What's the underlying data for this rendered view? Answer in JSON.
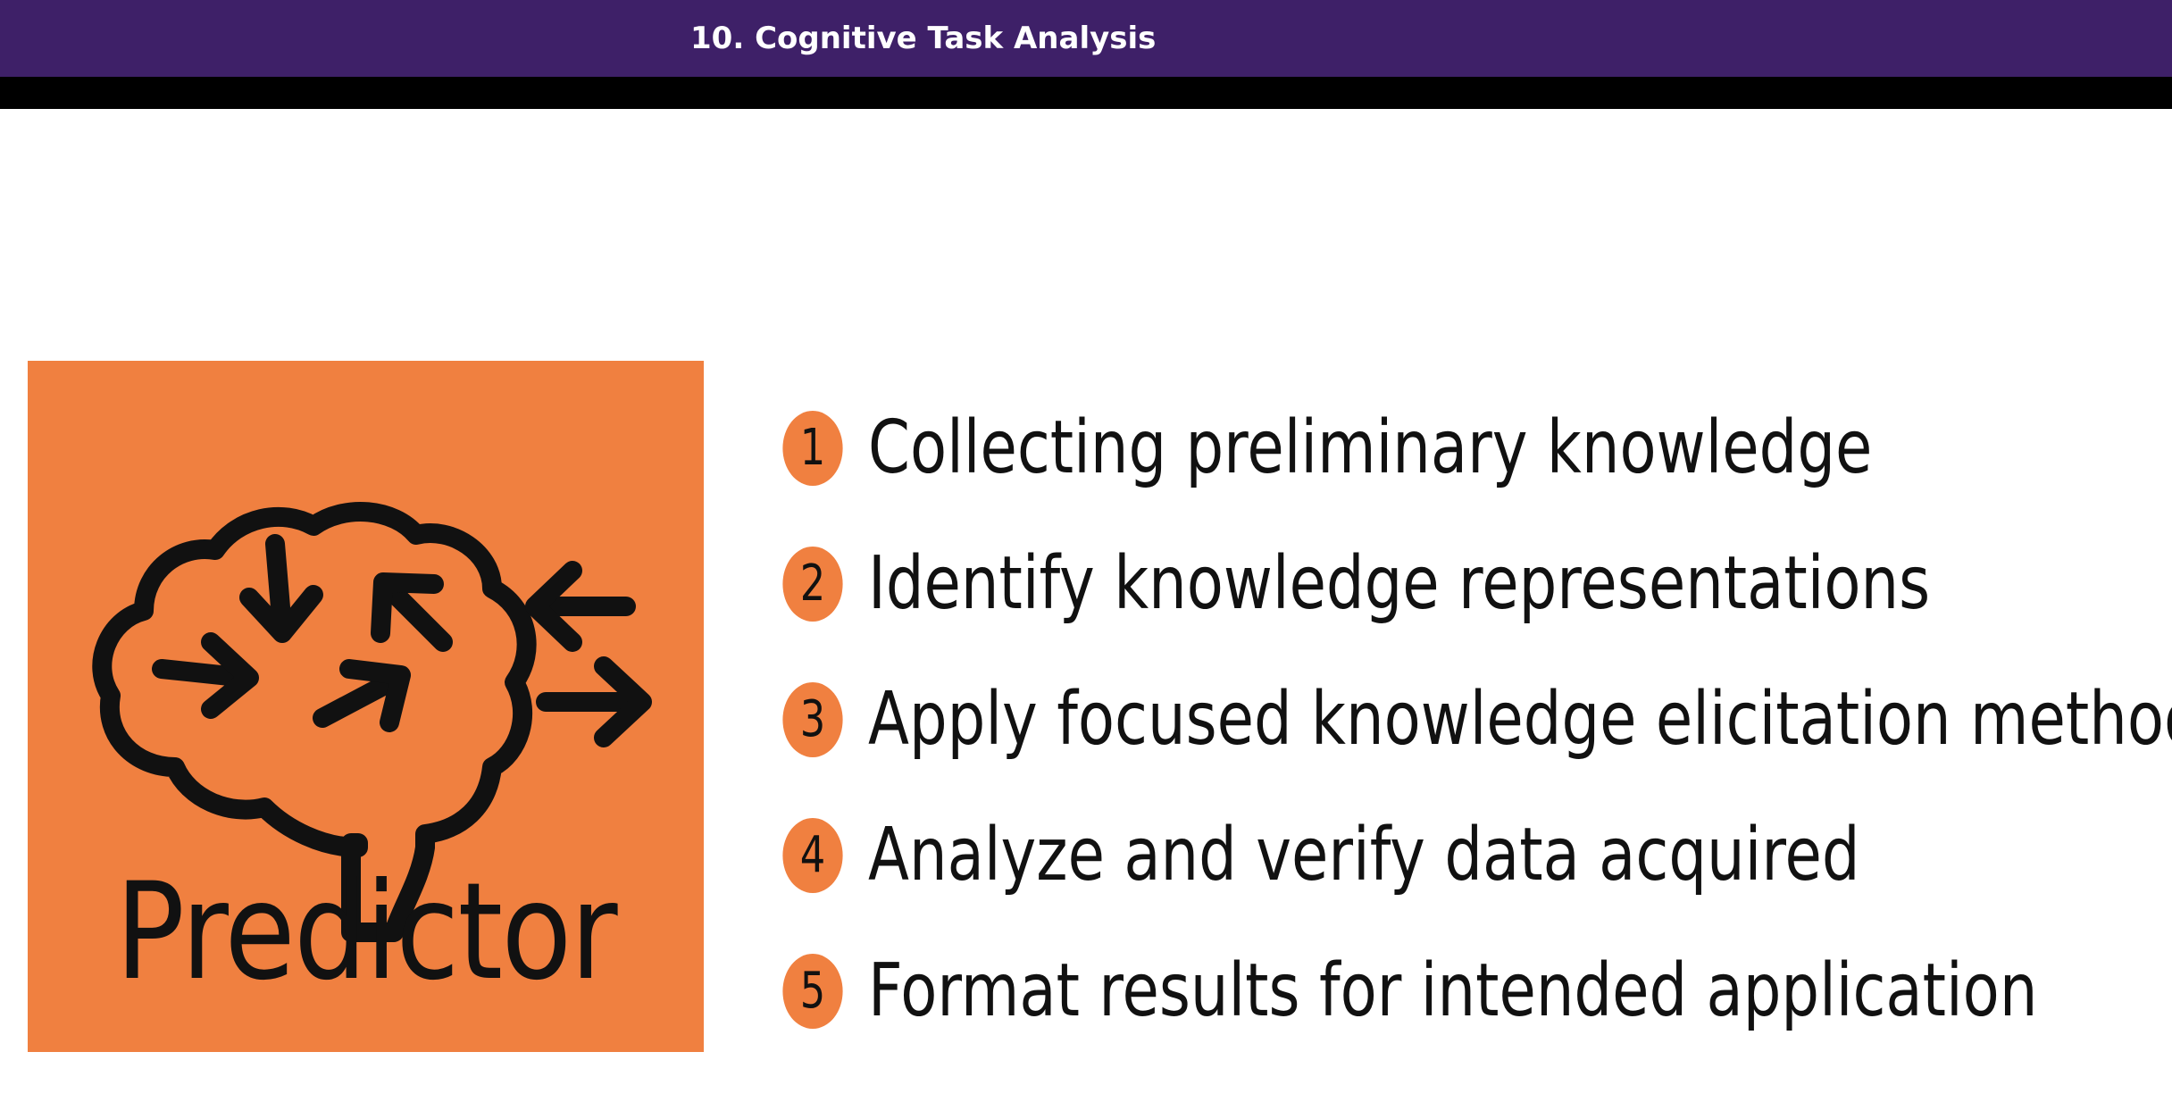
{
  "header": {
    "title": "10. Cognitive Task Analysis"
  },
  "logo": {
    "text": "Predictor",
    "icon": "brain-arrows-icon",
    "background_color": "#f08040"
  },
  "steps": [
    {
      "number": "1",
      "label": "Collecting preliminary knowledge"
    },
    {
      "number": "2",
      "label": "Identify knowledge representations"
    },
    {
      "number": "3",
      "label": "Apply focused knowledge elicitation methods"
    },
    {
      "number": "4",
      "label": "Analyze and verify data acquired"
    },
    {
      "number": "5",
      "label": "Format results for intended application"
    }
  ],
  "colors": {
    "header_bar": "#3e2068",
    "accent": "#f08040",
    "text": "#111111"
  }
}
